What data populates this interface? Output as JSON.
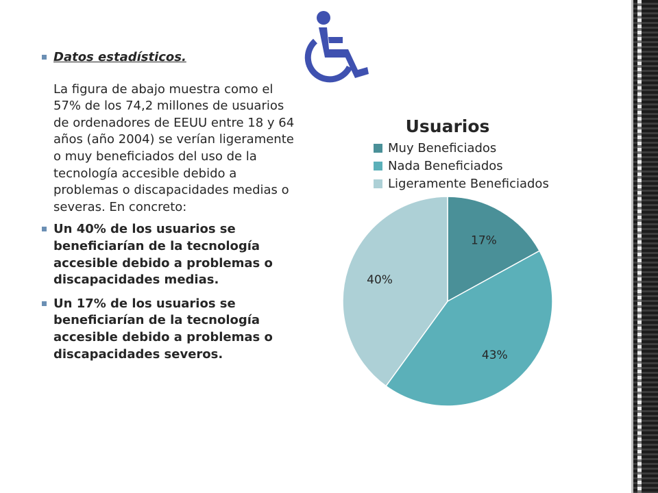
{
  "text": {
    "heading": "Datos estadísticos.",
    "intro": "La figura de abajo muestra como el 57% de los 74,2 millones de usuarios de ordenadores de EEUU entre 18 y 64 años (año 2004) se verían ligeramente o muy beneficiados del uso de la tecnología accesible debido a problemas o discapacidades medias o severas. En concreto:",
    "bullet_1": "Un 40% de los usuarios se beneficiarían de la tecnología accesible debido a problemas o discapacidades medias.",
    "bullet_2": "Un 17% de los usuarios se beneficiarían de la tecnología accesible debido a problemas o discapacidades severos."
  },
  "icons": {
    "top": "wheelchair-icon",
    "bullets": "square-bullet-icon"
  },
  "colors": {
    "accent": "#3f51b0",
    "bullet": "#6b8fb4"
  },
  "chart_data": {
    "type": "pie",
    "title": "Usuarios",
    "legend_position": "top",
    "slices": [
      {
        "label": "Muy Beneficiados",
        "value": 17,
        "display": "17%",
        "color": "#4a9098"
      },
      {
        "label": "Nada Beneficiados",
        "value": 43,
        "display": "43%",
        "color": "#5bb0b9"
      },
      {
        "label": "Ligeramente Beneficiados",
        "value": 40,
        "display": "40%",
        "color": "#add0d6"
      }
    ]
  }
}
